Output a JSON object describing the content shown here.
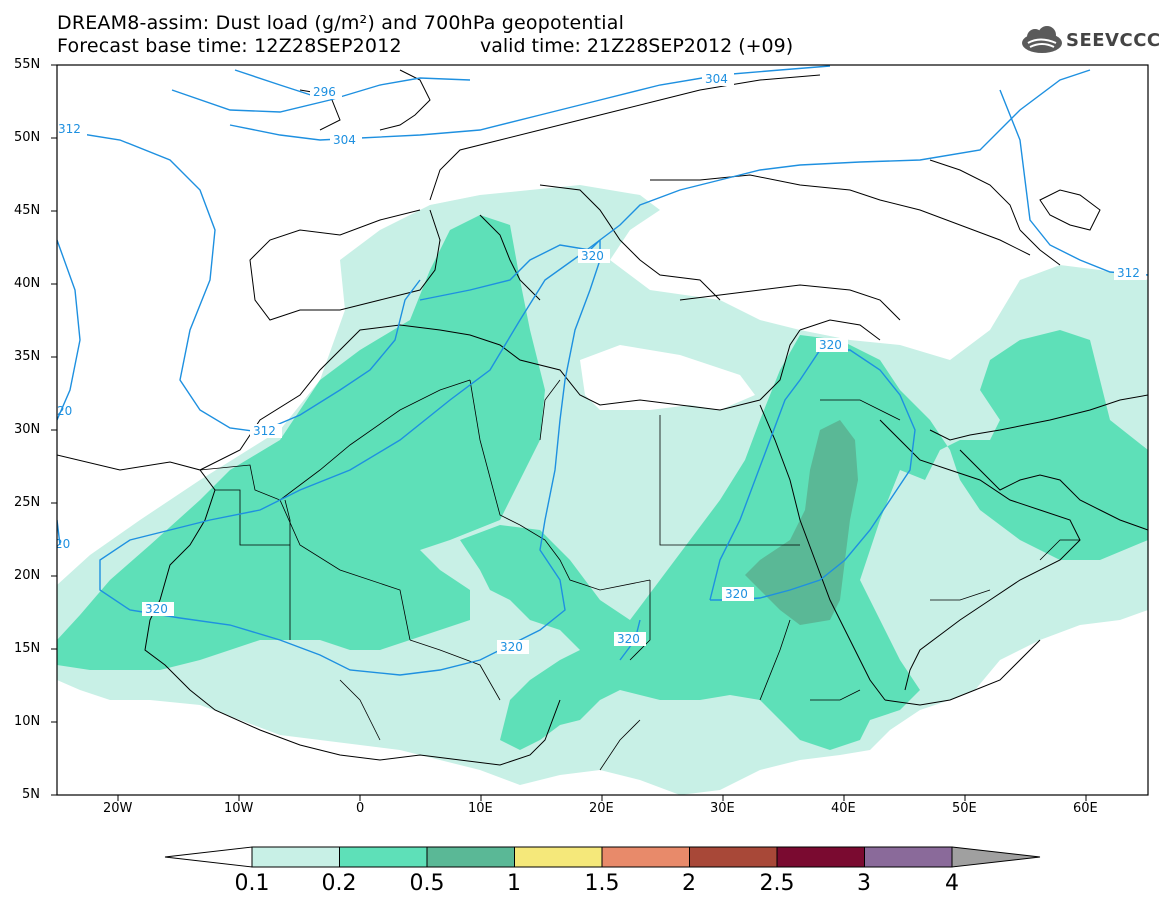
{
  "header": {
    "title_line1": "DREAM8-assim: Dust load (g/m²) and 700hPa geopotential",
    "title_line2": "Forecast base time: 12Z28SEP2012",
    "valid_time": "valid time: 21Z28SEP2012 (+09)",
    "logo_text": "SEEVCCC"
  },
  "axes": {
    "lat_labels": [
      "55N",
      "50N",
      "45N",
      "40N",
      "35N",
      "30N",
      "25N",
      "20N",
      "15N",
      "10N",
      "5N"
    ],
    "lon_labels": [
      "20W",
      "10W",
      "0",
      "10E",
      "20E",
      "30E",
      "40E",
      "50E",
      "60E"
    ]
  },
  "contours": {
    "labels": [
      "296",
      "304",
      "304",
      "312",
      "312",
      "312",
      "320",
      "320",
      "320",
      "320",
      "320",
      "320",
      "20",
      "20"
    ],
    "color": "#1e90e0"
  },
  "colorbar": {
    "labels": [
      "0.1",
      "0.2",
      "0.5",
      "1",
      "1.5",
      "2",
      "2.5",
      "3",
      "4"
    ],
    "colors": [
      "#ffffff",
      "#c8f0e6",
      "#5ee0b8",
      "#5ab896",
      "#f5e87a",
      "#e88a6a",
      "#a84838",
      "#7a0a30",
      "#8a6a9a",
      "#a0a0a0"
    ]
  },
  "map_colors": {
    "light_dust": "#c8f0e6",
    "medium_dust": "#5ee0b8",
    "heavy_dust": "#5ab896"
  }
}
